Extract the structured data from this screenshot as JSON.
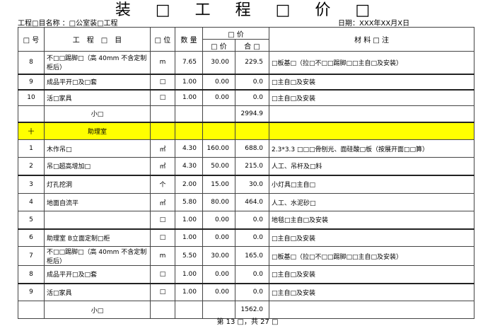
{
  "title": "装 □ 工 程 □ 价 □",
  "project_label": "工程□目名称 ：□公室装□工程",
  "date_label": "日期：XXX年XX月X日",
  "headers": {
    "no": "□ 号",
    "item": "工　程　□　目",
    "unit": "□ 位",
    "qty": "数 量",
    "price_group": "□ 价",
    "unit_price": "□ 价",
    "total": "合 □",
    "remark": "材 料 □ 注"
  },
  "rows": [
    {
      "no": "8",
      "item": "不□□踢脚□（高 40mm 不含定制柜后）",
      "unit": "m",
      "qty": "7.65",
      "price": "30.00",
      "total": "229.5",
      "remark": "□板基□（拉□不□□踢脚□□主自□及安装）"
    },
    {
      "no": "9",
      "item": "成品平开□及□套",
      "unit": "□",
      "qty": "1.00",
      "price": "0.00",
      "total": "0.0",
      "remark": "□主自□及安装"
    },
    {
      "no": "10",
      "item": "活□家具",
      "unit": "□",
      "qty": "1.00",
      "price": "0.00",
      "total": "0.0",
      "remark": "□主自□及安装"
    },
    {
      "no": "",
      "item": "小□",
      "unit": "",
      "qty": "",
      "price": "",
      "total": "2994.9",
      "remark": "",
      "subtotal": true
    },
    {
      "no": "十",
      "item": "助理室",
      "unit": "",
      "qty": "",
      "price": "",
      "total": "",
      "remark": "",
      "section": true
    },
    {
      "no": "1",
      "item": "木作吊□",
      "unit": "㎡",
      "qty": "4.30",
      "price": "160.00",
      "total": "688.0",
      "remark": "2.3*3.3 □□□骨刨光、面硅酸□板（按展开面□□算）"
    },
    {
      "no": "2",
      "item": "吊□超高增加□",
      "unit": "㎡",
      "qty": "4.30",
      "price": "50.00",
      "total": "215.0",
      "remark": "人工、吊杆及□料"
    },
    {
      "no": "3",
      "item": "灯孔挖洞",
      "unit": "个",
      "qty": "2.00",
      "price": "15.00",
      "total": "30.0",
      "remark": "小灯具□主自□"
    },
    {
      "no": "4",
      "item": "地面自流平",
      "unit": "㎡",
      "qty": "5.80",
      "price": "80.00",
      "total": "464.0",
      "remark": "人工、水泥砂□"
    },
    {
      "no": "5",
      "item": "",
      "unit": "□",
      "qty": "1.00",
      "price": "0.00",
      "total": "0.0",
      "remark": "地毯□主自□及安装"
    },
    {
      "no": "6",
      "item": "助理室 B立面定制□柜",
      "unit": "□",
      "qty": "1.00",
      "price": "0.00",
      "total": "0.0",
      "remark": "□主自□及安装"
    },
    {
      "no": "7",
      "item": "不□□踢脚□（高 40mm 不含定制柜后）",
      "unit": "m",
      "qty": "5.50",
      "price": "30.00",
      "total": "165.0",
      "remark": "□板基□（拉□不□□踢脚□□主自□及安装）"
    },
    {
      "no": "8",
      "item": "成品平开□及□套",
      "unit": "□",
      "qty": "1.00",
      "price": "0.00",
      "total": "0.0",
      "remark": "□主自□及安装"
    },
    {
      "no": "9",
      "item": "活□家具",
      "unit": "□",
      "qty": "1.00",
      "price": "0.00",
      "total": "0.0",
      "remark": "□主自□及安装"
    },
    {
      "no": "",
      "item": "小□",
      "unit": "",
      "qty": "",
      "price": "",
      "total": "1562.0",
      "remark": "",
      "subtotal": true
    }
  ],
  "footer": "第 13 □，共 27 □",
  "colors": {
    "section_highlight": "#ffff00"
  }
}
